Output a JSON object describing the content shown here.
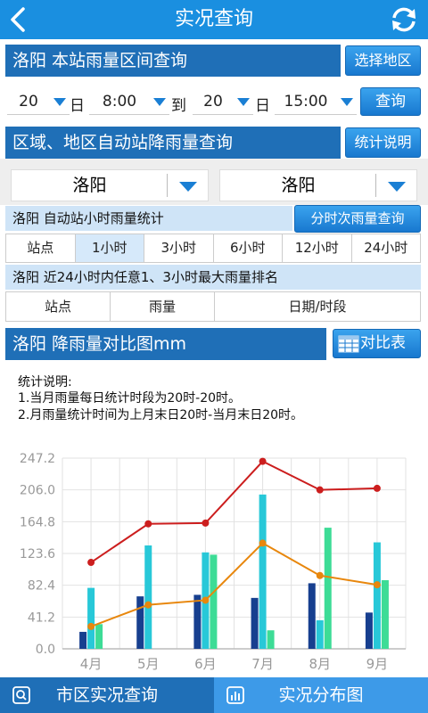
{
  "header": {
    "title": "实况查询",
    "back_icon": "back-arrow-icon",
    "refresh_icon": "refresh-icon"
  },
  "section1": {
    "title": "洛阳  本站雨量区间查询",
    "button": "选择地区"
  },
  "range": {
    "start_day": "20",
    "day_label": "日",
    "start_time": "8:00",
    "to_label": "到",
    "end_day": "20",
    "end_day_label": "日",
    "end_time": "15:00",
    "query_button": "查询"
  },
  "section2": {
    "title": "区域、地区自动站降雨量查询",
    "button": "统计说明"
  },
  "region": {
    "left": "洛阳",
    "right": "洛阳"
  },
  "hourly": {
    "title": "洛阳  自动站小时雨量统计",
    "button": "分时次雨量查询",
    "tabs": [
      "站点",
      "1小时",
      "3小时",
      "6小时",
      "12小时",
      "24小时"
    ],
    "active_tab": 1
  },
  "ranking": {
    "title": "洛阳  近24小时内任意1、3小时最大雨量排名",
    "columns": [
      "站点",
      "雨量",
      "日期/时段"
    ]
  },
  "section3": {
    "title": "洛阳  降雨量对比图mm",
    "button": "对比表"
  },
  "notes": {
    "heading": "统计说明:",
    "line1": "1.当月雨量每日统计时段为20时-20时。",
    "line2": "2.月雨量统计时间为上月末日20时-当月末日20时。"
  },
  "chart_data": {
    "type": "bar",
    "categories": [
      "4月",
      "5月",
      "6月",
      "7月",
      "8月",
      "9月"
    ],
    "yticks": [
      "0.0",
      "41.2",
      "82.4",
      "123.6",
      "164.8",
      "206.0",
      "247.2"
    ],
    "ylim": [
      0,
      247.2
    ],
    "series": [
      {
        "values": [
          22,
          68,
          70,
          66,
          85,
          47
        ],
        "color": "#173f8f"
      },
      {
        "values": [
          79,
          134,
          125,
          200,
          37,
          138
        ],
        "color": "#28c8d8"
      },
      {
        "values": [
          32,
          0,
          122,
          24,
          157,
          89
        ],
        "color": "#3ddc96"
      }
    ],
    "lines": [
      {
        "values": [
          112,
          162,
          163,
          243,
          206,
          208
        ],
        "color": "#cc1e1e"
      },
      {
        "values": [
          29,
          57,
          63,
          137,
          95,
          83
        ],
        "color": "#e8870d"
      }
    ],
    "grid": true
  },
  "bottom_nav": [
    {
      "label": "市区实况查询",
      "icon": "search-icon"
    },
    {
      "label": "实况分布图",
      "icon": "bar-chart-icon"
    }
  ]
}
